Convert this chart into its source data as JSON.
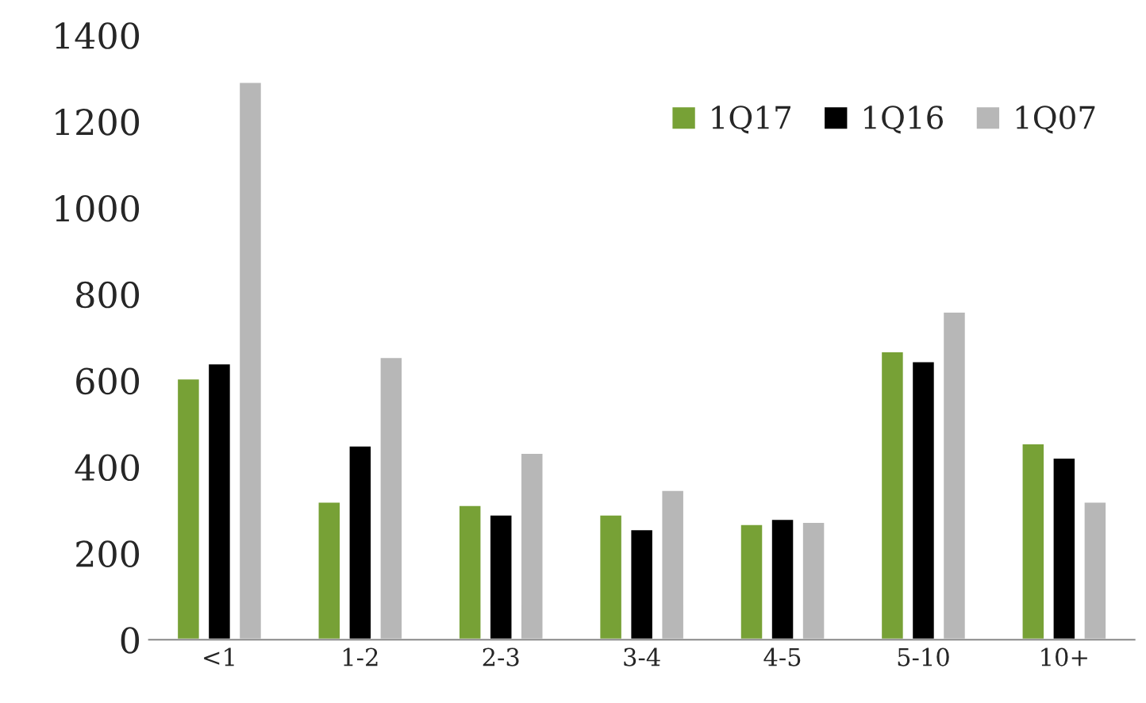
{
  "chart_data": {
    "type": "bar",
    "categories": [
      "<1",
      "1-2",
      "2-3",
      "3-4",
      "4-5",
      "5-10",
      "10+"
    ],
    "series": [
      {
        "name": "1Q17",
        "color": "#77a136",
        "values": [
          605,
          320,
          312,
          290,
          268,
          668,
          455
        ]
      },
      {
        "name": "1Q16",
        "color": "#000000",
        "values": [
          640,
          450,
          290,
          256,
          280,
          645,
          422
        ]
      },
      {
        "name": "1Q07",
        "color": "#b7b7b7",
        "values": [
          1292,
          655,
          433,
          347,
          273,
          760,
          320
        ]
      }
    ],
    "ylim": [
      0,
      1400
    ],
    "yticks": [
      0,
      200,
      400,
      600,
      800,
      1000,
      1200,
      1400
    ],
    "grid": false,
    "legend": "top right"
  }
}
